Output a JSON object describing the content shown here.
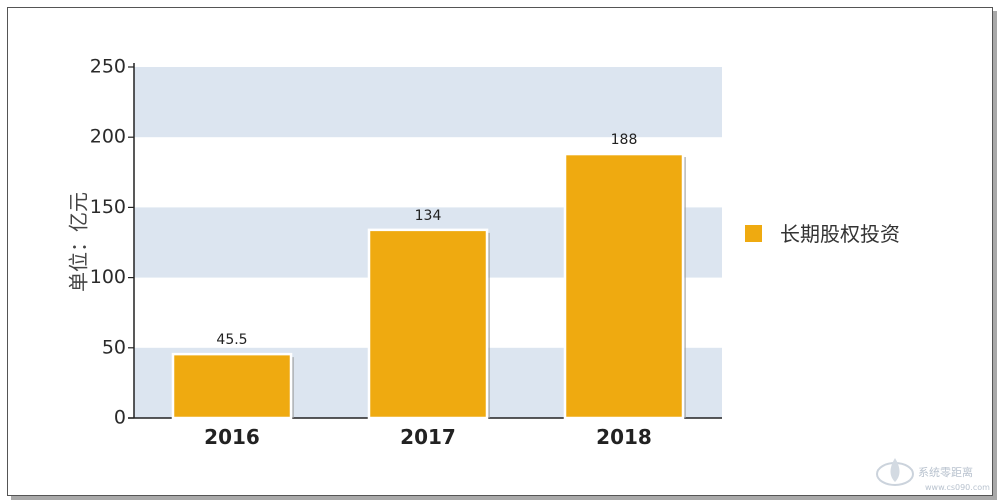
{
  "chart_data": {
    "type": "bar",
    "categories": [
      "2016",
      "2017",
      "2018"
    ],
    "series": [
      {
        "name": "长期股权投资",
        "values": [
          45.5,
          134,
          188
        ],
        "color": "#efaa10"
      }
    ],
    "data_labels": [
      "45.5",
      "134",
      "188"
    ],
    "ylabel": "单位：亿元",
    "xlabel": "",
    "ylim": [
      0,
      250
    ],
    "yticks": [
      0,
      50,
      100,
      150,
      200,
      250
    ],
    "band_color": "#dce5f0",
    "legend_position": "right"
  },
  "watermark": {
    "text": "系统零距离",
    "site": "www.cs090.com"
  }
}
